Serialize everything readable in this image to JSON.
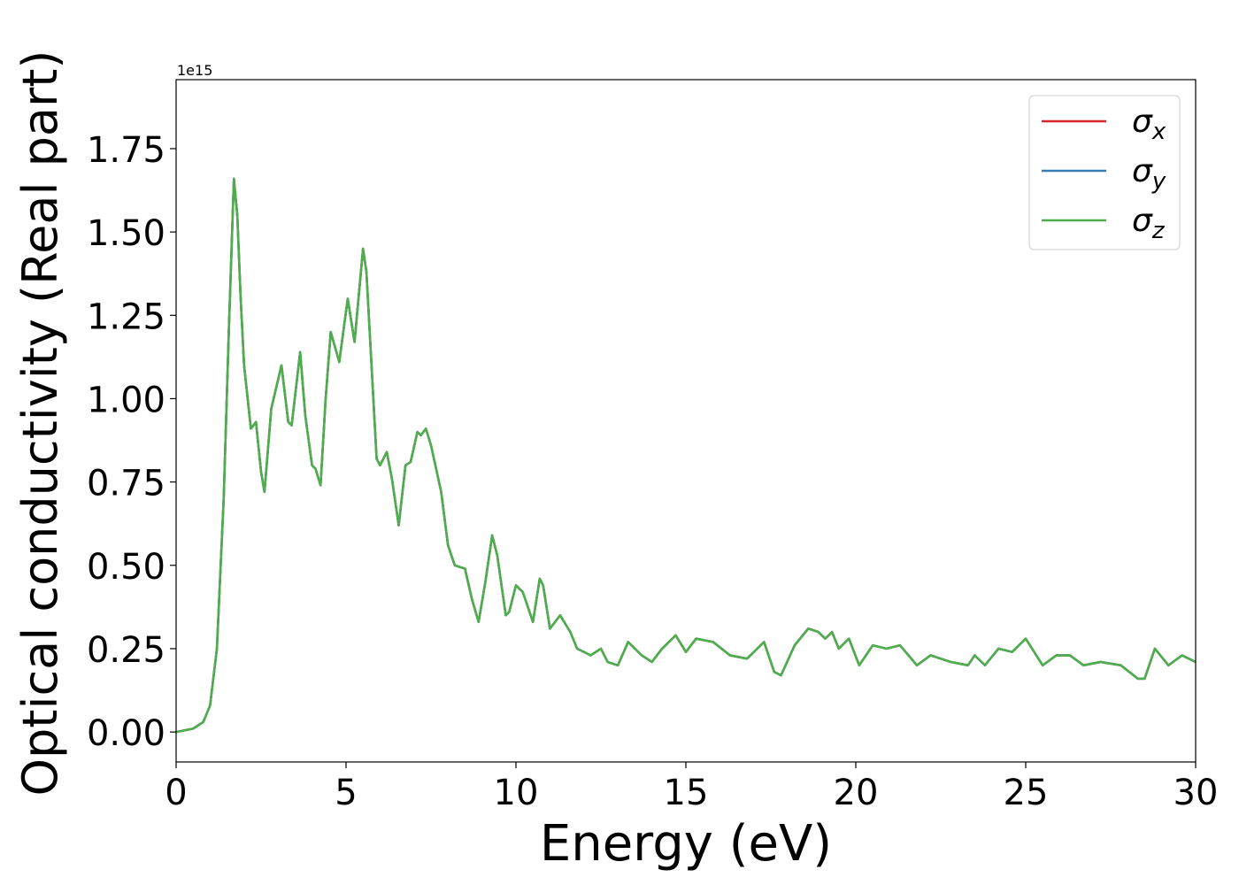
{
  "chart_data": {
    "type": "line",
    "xlabel": "Energy (eV)",
    "ylabel": "Optical conductivity (Real part)",
    "y_offset_label": "1e15",
    "xlim": [
      0,
      30
    ],
    "ylim": [
      -0.09,
      1.957
    ],
    "xticks": [
      0,
      5,
      10,
      15,
      20,
      25,
      30
    ],
    "yticks": [
      {
        "value": 0,
        "label": "0.00"
      },
      0.25,
      {
        "value": 0.5,
        "label": "0.50"
      },
      0.75,
      {
        "value": 1,
        "label": "1.00"
      },
      1.25,
      {
        "value": 1.5,
        "label": "1.50"
      },
      1.75
    ],
    "legend": "upper right",
    "grid": false,
    "x": [
      0,
      0.5,
      0.8,
      1.0,
      1.2,
      1.4,
      1.55,
      1.7,
      1.8,
      1.9,
      2.0,
      2.2,
      2.35,
      2.5,
      2.6,
      2.8,
      3.1,
      3.3,
      3.4,
      3.65,
      3.8,
      4.0,
      4.1,
      4.25,
      4.4,
      4.55,
      4.8,
      5.05,
      5.25,
      5.5,
      5.6,
      5.75,
      5.9,
      6.0,
      6.2,
      6.35,
      6.55,
      6.75,
      6.9,
      7.1,
      7.2,
      7.35,
      7.5,
      7.8,
      8.0,
      8.2,
      8.5,
      8.7,
      8.9,
      9.1,
      9.3,
      9.45,
      9.7,
      9.8,
      10.0,
      10.2,
      10.5,
      10.7,
      10.8,
      11.0,
      11.3,
      11.6,
      11.8,
      12.2,
      12.5,
      12.7,
      13.0,
      13.3,
      13.7,
      14.0,
      14.3,
      14.7,
      15.0,
      15.3,
      15.8,
      16.3,
      16.8,
      17.3,
      17.6,
      17.8,
      18.2,
      18.6,
      18.9,
      19.1,
      19.3,
      19.5,
      19.8,
      20.1,
      20.5,
      20.9,
      21.3,
      21.8,
      22.2,
      22.8,
      23.3,
      23.5,
      23.8,
      24.2,
      24.6,
      25.0,
      25.5,
      25.9,
      26.3,
      26.7,
      27.2,
      27.8,
      28.3,
      28.5,
      28.8,
      29.2,
      29.6,
      30
    ],
    "series": [
      {
        "name": "σx",
        "color": "#d62728",
        "values": [
          0,
          0.01,
          0.03,
          0.08,
          0.25,
          0.7,
          1.2,
          1.66,
          1.55,
          1.3,
          1.1,
          0.91,
          0.93,
          0.78,
          0.72,
          0.97,
          1.1,
          0.93,
          0.92,
          1.14,
          0.95,
          0.8,
          0.79,
          0.74,
          1.0,
          1.2,
          1.11,
          1.3,
          1.17,
          1.45,
          1.38,
          1.1,
          0.82,
          0.8,
          0.84,
          0.76,
          0.62,
          0.8,
          0.81,
          0.9,
          0.89,
          0.91,
          0.86,
          0.72,
          0.56,
          0.5,
          0.49,
          0.4,
          0.33,
          0.45,
          0.59,
          0.53,
          0.35,
          0.36,
          0.44,
          0.42,
          0.33,
          0.46,
          0.44,
          0.31,
          0.35,
          0.3,
          0.25,
          0.23,
          0.25,
          0.21,
          0.2,
          0.27,
          0.23,
          0.21,
          0.25,
          0.29,
          0.24,
          0.28,
          0.27,
          0.23,
          0.22,
          0.27,
          0.18,
          0.17,
          0.26,
          0.31,
          0.3,
          0.28,
          0.3,
          0.25,
          0.28,
          0.2,
          0.26,
          0.25,
          0.26,
          0.2,
          0.23,
          0.21,
          0.2,
          0.23,
          0.2,
          0.25,
          0.24,
          0.28,
          0.2,
          0.23,
          0.23,
          0.2,
          0.21,
          0.2,
          0.16,
          0.16,
          0.25,
          0.2,
          0.23,
          0.21
        ]
      },
      {
        "name": "σy",
        "color": "#377eb8",
        "values": [
          0,
          0.01,
          0.03,
          0.08,
          0.25,
          0.7,
          1.2,
          1.66,
          1.55,
          1.3,
          1.1,
          0.91,
          0.93,
          0.78,
          0.72,
          0.97,
          1.1,
          0.93,
          0.92,
          1.14,
          0.95,
          0.8,
          0.79,
          0.74,
          1.0,
          1.2,
          1.11,
          1.3,
          1.17,
          1.45,
          1.38,
          1.1,
          0.82,
          0.8,
          0.84,
          0.76,
          0.62,
          0.8,
          0.81,
          0.9,
          0.89,
          0.91,
          0.86,
          0.72,
          0.56,
          0.5,
          0.49,
          0.4,
          0.33,
          0.45,
          0.59,
          0.53,
          0.35,
          0.36,
          0.44,
          0.42,
          0.33,
          0.46,
          0.44,
          0.31,
          0.35,
          0.3,
          0.25,
          0.23,
          0.25,
          0.21,
          0.2,
          0.27,
          0.23,
          0.21,
          0.25,
          0.29,
          0.24,
          0.28,
          0.27,
          0.23,
          0.22,
          0.27,
          0.18,
          0.17,
          0.26,
          0.31,
          0.3,
          0.28,
          0.3,
          0.25,
          0.28,
          0.2,
          0.26,
          0.25,
          0.26,
          0.2,
          0.23,
          0.21,
          0.2,
          0.23,
          0.2,
          0.25,
          0.24,
          0.28,
          0.2,
          0.23,
          0.23,
          0.2,
          0.21,
          0.2,
          0.16,
          0.16,
          0.25,
          0.2,
          0.23,
          0.21
        ]
      },
      {
        "name": "σz",
        "color": "#4daf4a",
        "values": [
          0,
          0.01,
          0.03,
          0.08,
          0.25,
          0.7,
          1.2,
          1.66,
          1.55,
          1.3,
          1.1,
          0.91,
          0.93,
          0.78,
          0.72,
          0.97,
          1.1,
          0.93,
          0.92,
          1.14,
          0.95,
          0.8,
          0.79,
          0.74,
          1.0,
          1.2,
          1.11,
          1.3,
          1.17,
          1.45,
          1.38,
          1.1,
          0.82,
          0.8,
          0.84,
          0.76,
          0.62,
          0.8,
          0.81,
          0.9,
          0.89,
          0.91,
          0.86,
          0.72,
          0.56,
          0.5,
          0.49,
          0.4,
          0.33,
          0.45,
          0.59,
          0.53,
          0.35,
          0.36,
          0.44,
          0.42,
          0.33,
          0.46,
          0.44,
          0.31,
          0.35,
          0.3,
          0.25,
          0.23,
          0.25,
          0.21,
          0.2,
          0.27,
          0.23,
          0.21,
          0.25,
          0.29,
          0.24,
          0.28,
          0.27,
          0.23,
          0.22,
          0.27,
          0.18,
          0.17,
          0.26,
          0.31,
          0.3,
          0.28,
          0.3,
          0.25,
          0.28,
          0.2,
          0.26,
          0.25,
          0.26,
          0.2,
          0.23,
          0.21,
          0.2,
          0.23,
          0.2,
          0.25,
          0.24,
          0.28,
          0.2,
          0.23,
          0.23,
          0.2,
          0.21,
          0.2,
          0.16,
          0.16,
          0.25,
          0.2,
          0.23,
          0.21
        ]
      }
    ]
  }
}
